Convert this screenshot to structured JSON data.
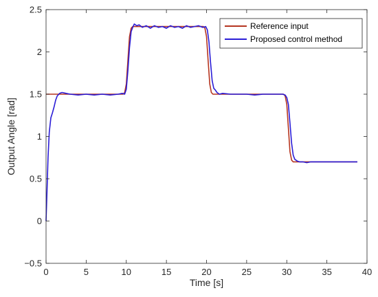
{
  "chart_data": {
    "type": "line",
    "xlabel": "Time [s]",
    "ylabel": "Output Angle [rad]",
    "xlim": [
      0,
      40
    ],
    "ylim": [
      -0.5,
      2.5
    ],
    "xticks": [
      0,
      5,
      10,
      15,
      20,
      25,
      30,
      35,
      40
    ],
    "yticks": [
      -0.5,
      0,
      0.5,
      1,
      1.5,
      2,
      2.5
    ],
    "grid": false,
    "legend_position": "top-right",
    "colors": {
      "reference": "#b5341f",
      "proposed": "#2a1cd6",
      "axis": "#262626"
    },
    "series": [
      {
        "name": "Reference input",
        "x": [
          0,
          9.6,
          9.8,
          10.0,
          10.2,
          10.4,
          10.6,
          10.8,
          19.6,
          19.8,
          20.0,
          20.2,
          20.4,
          20.6,
          20.8,
          29.6,
          29.8,
          30.0,
          30.2,
          30.4,
          30.6,
          30.8,
          38.8
        ],
        "y": [
          1.5,
          1.5,
          1.52,
          1.62,
          1.9,
          2.18,
          2.28,
          2.3,
          2.3,
          2.28,
          2.18,
          1.9,
          1.62,
          1.52,
          1.5,
          1.5,
          1.48,
          1.38,
          1.1,
          0.82,
          0.72,
          0.7,
          0.7
        ]
      },
      {
        "name": "Proposed control method",
        "x": [
          0,
          0.1,
          0.25,
          0.4,
          0.6,
          0.8,
          1.0,
          1.2,
          1.4,
          1.7,
          2.0,
          2.5,
          3.0,
          4.0,
          5.0,
          6.0,
          7.0,
          8.0,
          9.0,
          9.5,
          9.8,
          10.0,
          10.2,
          10.4,
          10.6,
          10.8,
          11.0,
          11.3,
          11.6,
          12.0,
          12.5,
          13.0,
          13.5,
          14.0,
          14.5,
          15.0,
          15.5,
          16.0,
          16.5,
          17.0,
          17.5,
          18.0,
          18.5,
          19.0,
          19.5,
          19.9,
          20.1,
          20.3,
          20.5,
          20.7,
          20.9,
          21.1,
          21.3,
          21.6,
          22.0,
          23.0,
          24.0,
          25.0,
          26.0,
          27.0,
          28.0,
          29.0,
          29.5,
          29.8,
          30.0,
          30.2,
          30.4,
          30.6,
          30.8,
          31.0,
          31.3,
          31.6,
          32.0,
          32.5,
          33.0,
          34.0,
          35.0,
          36.0,
          37.0,
          38.0,
          38.8
        ],
        "y": [
          0.0,
          0.3,
          0.75,
          1.05,
          1.22,
          1.28,
          1.35,
          1.43,
          1.48,
          1.51,
          1.52,
          1.51,
          1.5,
          1.49,
          1.5,
          1.49,
          1.5,
          1.49,
          1.5,
          1.51,
          1.5,
          1.56,
          1.78,
          2.05,
          2.24,
          2.29,
          2.33,
          2.31,
          2.32,
          2.29,
          2.31,
          2.28,
          2.31,
          2.29,
          2.3,
          2.28,
          2.31,
          2.29,
          2.3,
          2.28,
          2.31,
          2.29,
          2.3,
          2.31,
          2.29,
          2.3,
          2.26,
          2.12,
          1.88,
          1.66,
          1.57,
          1.55,
          1.52,
          1.5,
          1.51,
          1.5,
          1.5,
          1.5,
          1.49,
          1.5,
          1.5,
          1.5,
          1.5,
          1.49,
          1.46,
          1.38,
          1.16,
          0.92,
          0.78,
          0.73,
          0.71,
          0.7,
          0.7,
          0.69,
          0.7,
          0.7,
          0.7,
          0.7,
          0.7,
          0.7,
          0.7
        ]
      }
    ]
  }
}
